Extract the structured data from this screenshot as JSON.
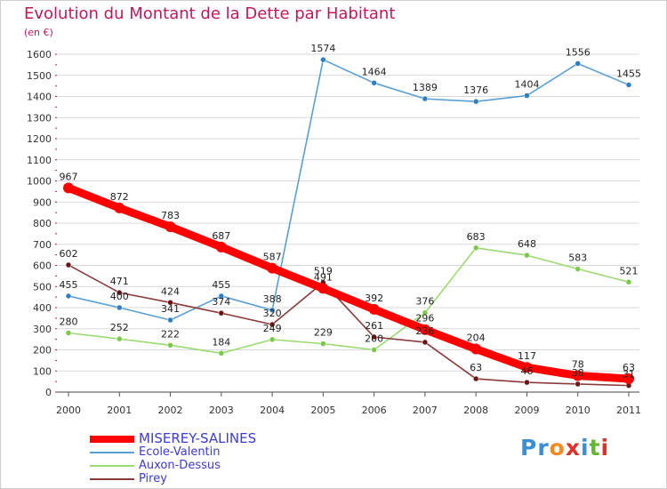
{
  "title": "Evolution du Montant de la Dette par Habitant",
  "subtitle": "(en €)",
  "logo": {
    "text": "Proxiti",
    "letter_colors": [
      "#3a8fd6",
      "#3a8fd6",
      "#f28c1e",
      "#e0302a",
      "#3a8fd6",
      "#5fb82d",
      "#e0302a"
    ]
  },
  "chart_data": {
    "type": "line",
    "title": "Evolution du Montant de la Dette par Habitant",
    "subtitle": "(en €)",
    "xlabel": "",
    "ylabel": "",
    "x": [
      "2000",
      "2001",
      "2002",
      "2003",
      "2004",
      "2005",
      "2006",
      "2007",
      "2008",
      "2009",
      "2010",
      "2011"
    ],
    "ylim": [
      0,
      1600
    ],
    "yticks": [
      0,
      100,
      200,
      300,
      400,
      500,
      600,
      700,
      800,
      900,
      1000,
      1100,
      1200,
      1300,
      1400,
      1500,
      1600
    ],
    "grid": "horizontal",
    "legend_position": "bottom-left",
    "series": [
      {
        "name": "Ecole-Valentin",
        "color": "#5a9fd4",
        "marker_color": "#2f7fc1",
        "values": [
          455,
          400,
          341,
          455,
          388,
          1574,
          1464,
          1389,
          1376,
          1404,
          1556,
          1455
        ]
      },
      {
        "name": "Auxon-Dessus",
        "color": "#9ada70",
        "marker_color": "#7cc94a",
        "values": [
          280,
          252,
          222,
          184,
          249,
          229,
          200,
          376,
          683,
          648,
          583,
          521
        ]
      },
      {
        "name": "Pirey",
        "color": "#8b3a3a",
        "marker_color": "#6b1616",
        "values": [
          602,
          471,
          424,
          374,
          320,
          519,
          261,
          236,
          63,
          46,
          38,
          31
        ]
      },
      {
        "name": "MISEREY-SALINES",
        "color": "#ff0000",
        "marker_color": "#ff0000",
        "primary": true,
        "values": [
          967,
          872,
          783,
          687,
          587,
          491,
          392,
          296,
          204,
          117,
          78,
          63
        ]
      }
    ],
    "legend_order": [
      "MISEREY-SALINES",
      "Ecole-Valentin",
      "Auxon-Dessus",
      "Pirey"
    ]
  }
}
